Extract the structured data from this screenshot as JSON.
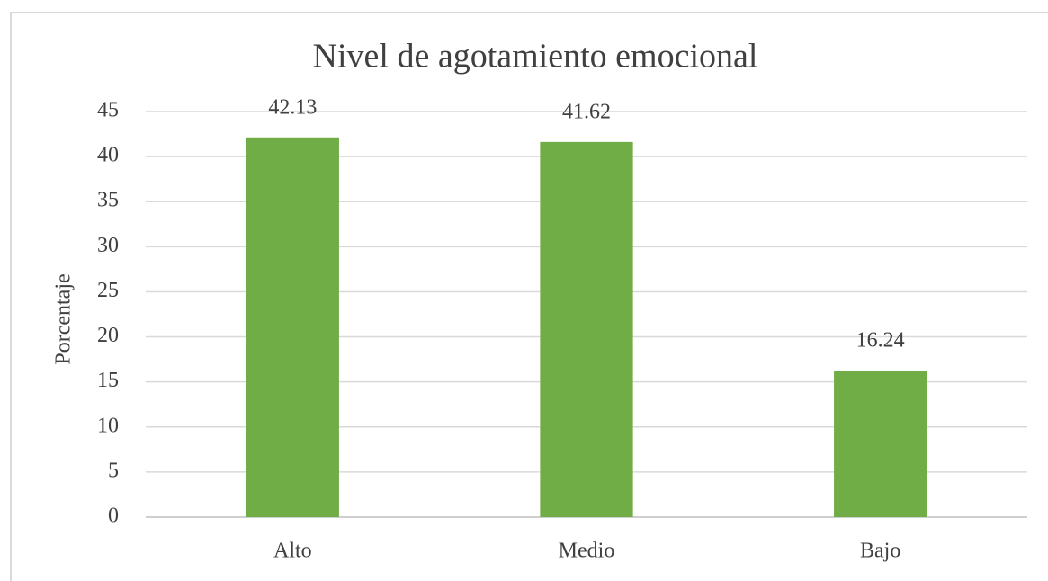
{
  "chart_data": {
    "type": "bar",
    "title": "Nivel de agotamiento emocional",
    "y_label": "Porcentaje",
    "categories": [
      "Alto",
      "Medio",
      "Bajo"
    ],
    "values": [
      42.13,
      41.62,
      16.24
    ],
    "color": "#70ad47",
    "ylim": [
      0,
      45
    ],
    "yticks": [
      0,
      5,
      10,
      15,
      20,
      25,
      30,
      35,
      40,
      45
    ],
    "grid": true
  }
}
